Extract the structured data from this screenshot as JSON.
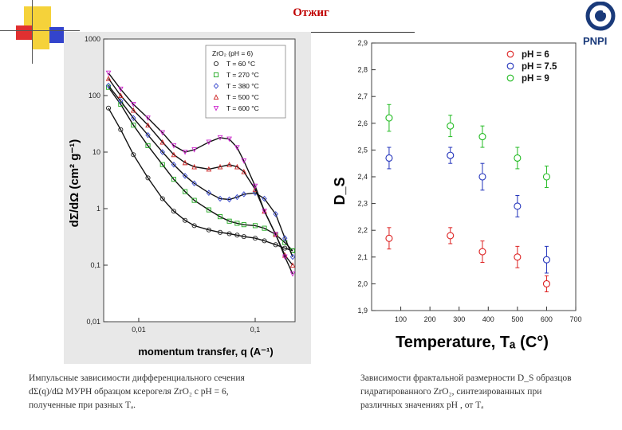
{
  "slide": {
    "title": "Отжиг",
    "logo_text": "PNPI",
    "caption_left_lines": [
      "Импульсные   зависимости   дифференциального   сечения",
      "dΣ(q)/dΩ  МУРН  образцом  ксерогеля  ZrO₂  с  pH  =  6,",
      "полученные при  разных Tₐ."
    ],
    "caption_right_lines": [
      "Зависимости фрактальной размерности D_S образцов",
      "гидратированного ZrO₂, синтезированных  при",
      "различных значениях pH , от Tₐ"
    ]
  },
  "chart_data": [
    {
      "type": "line",
      "title": "",
      "xlabel": "momentum transfer, q (A⁻¹)",
      "ylabel": "dΣ/dΩ (cm² g⁻¹)",
      "xscale": "log",
      "yscale": "log",
      "xlim": [
        0.005,
        0.22
      ],
      "ylim": [
        0.01,
        1000
      ],
      "x_ticks": [
        "0,01",
        "0,1"
      ],
      "y_ticks": [
        "0,01",
        "0,1",
        "1",
        "10",
        "100",
        "1000"
      ],
      "legend_title": "ZrO₂ (pH = 6)",
      "legend_position": "top-right",
      "series": [
        {
          "name": "T = 60 °C",
          "color": "#222222",
          "marker": "circle",
          "x": [
            0.0055,
            0.007,
            0.009,
            0.012,
            0.016,
            0.02,
            0.025,
            0.03,
            0.04,
            0.05,
            0.06,
            0.07,
            0.08,
            0.1,
            0.12,
            0.15,
            0.18,
            0.21
          ],
          "y": [
            60,
            25,
            9,
            3.5,
            1.5,
            0.9,
            0.62,
            0.5,
            0.42,
            0.38,
            0.36,
            0.34,
            0.32,
            0.3,
            0.27,
            0.23,
            0.2,
            0.18
          ]
        },
        {
          "name": "T = 270 °C",
          "color": "#22aa22",
          "marker": "square",
          "x": [
            0.0055,
            0.007,
            0.009,
            0.012,
            0.016,
            0.02,
            0.025,
            0.03,
            0.04,
            0.05,
            0.06,
            0.07,
            0.08,
            0.1,
            0.12,
            0.15,
            0.18,
            0.21
          ],
          "y": [
            140,
            70,
            30,
            13,
            6,
            3.3,
            2,
            1.4,
            0.95,
            0.72,
            0.6,
            0.55,
            0.52,
            0.5,
            0.45,
            0.35,
            0.25,
            0.18
          ]
        },
        {
          "name": "T = 380 °C",
          "color": "#3344cc",
          "marker": "diamond",
          "x": [
            0.0055,
            0.007,
            0.009,
            0.012,
            0.016,
            0.02,
            0.025,
            0.03,
            0.04,
            0.05,
            0.06,
            0.07,
            0.08,
            0.1,
            0.12,
            0.15,
            0.18,
            0.21
          ],
          "y": [
            150,
            80,
            40,
            20,
            10,
            6,
            3.8,
            2.8,
            1.9,
            1.5,
            1.45,
            1.6,
            1.8,
            1.9,
            1.5,
            0.8,
            0.3,
            0.14
          ]
        },
        {
          "name": "T = 500 °C",
          "color": "#cc2222",
          "marker": "triangle",
          "x": [
            0.0055,
            0.007,
            0.009,
            0.012,
            0.016,
            0.02,
            0.025,
            0.03,
            0.04,
            0.05,
            0.06,
            0.07,
            0.08,
            0.1,
            0.12,
            0.15,
            0.18,
            0.21
          ],
          "y": [
            200,
            100,
            55,
            30,
            15,
            9,
            6.5,
            5.5,
            5,
            5.5,
            6,
            5.5,
            4.5,
            2.2,
            0.9,
            0.35,
            0.15,
            0.1
          ]
        },
        {
          "name": "T = 600 °C",
          "color": "#cc22cc",
          "marker": "triangle-down",
          "x": [
            0.0055,
            0.007,
            0.009,
            0.012,
            0.016,
            0.02,
            0.025,
            0.03,
            0.04,
            0.05,
            0.06,
            0.07,
            0.08,
            0.1,
            0.12,
            0.15,
            0.18,
            0.21
          ],
          "y": [
            250,
            130,
            70,
            40,
            22,
            13,
            10,
            11,
            15,
            18,
            17,
            12,
            7,
            2.5,
            0.9,
            0.35,
            0.14,
            0.07
          ]
        }
      ]
    },
    {
      "type": "scatter",
      "title": "",
      "xlabel": "Temperature, Tₐ (C°)",
      "ylabel": "D_S",
      "xlim": [
        0,
        700
      ],
      "ylim": [
        1.9,
        2.9
      ],
      "x_ticks": [
        "100",
        "200",
        "300",
        "400",
        "500",
        "600",
        "700"
      ],
      "y_ticks": [
        "1,9",
        "2,0",
        "2,1",
        "2,2",
        "2,3",
        "2,4",
        "2,5",
        "2,6",
        "2,7",
        "2,8",
        "2,9"
      ],
      "legend_position": "top-right",
      "series": [
        {
          "name": "pH = 6",
          "color": "#dd2222",
          "x": [
            60,
            270,
            380,
            500,
            600
          ],
          "y": [
            2.17,
            2.18,
            2.12,
            2.1,
            2.0
          ],
          "err": [
            0.04,
            0.03,
            0.04,
            0.04,
            0.03
          ]
        },
        {
          "name": "pH = 7.5",
          "color": "#2233bb",
          "x": [
            60,
            270,
            380,
            500,
            600
          ],
          "y": [
            2.47,
            2.48,
            2.4,
            2.29,
            2.09
          ],
          "err": [
            0.04,
            0.03,
            0.05,
            0.04,
            0.05
          ]
        },
        {
          "name": "pH = 9",
          "color": "#22bb22",
          "x": [
            60,
            270,
            380,
            500,
            600
          ],
          "y": [
            2.62,
            2.59,
            2.55,
            2.47,
            2.4
          ],
          "err": [
            0.05,
            0.04,
            0.04,
            0.04,
            0.04
          ]
        }
      ]
    }
  ]
}
